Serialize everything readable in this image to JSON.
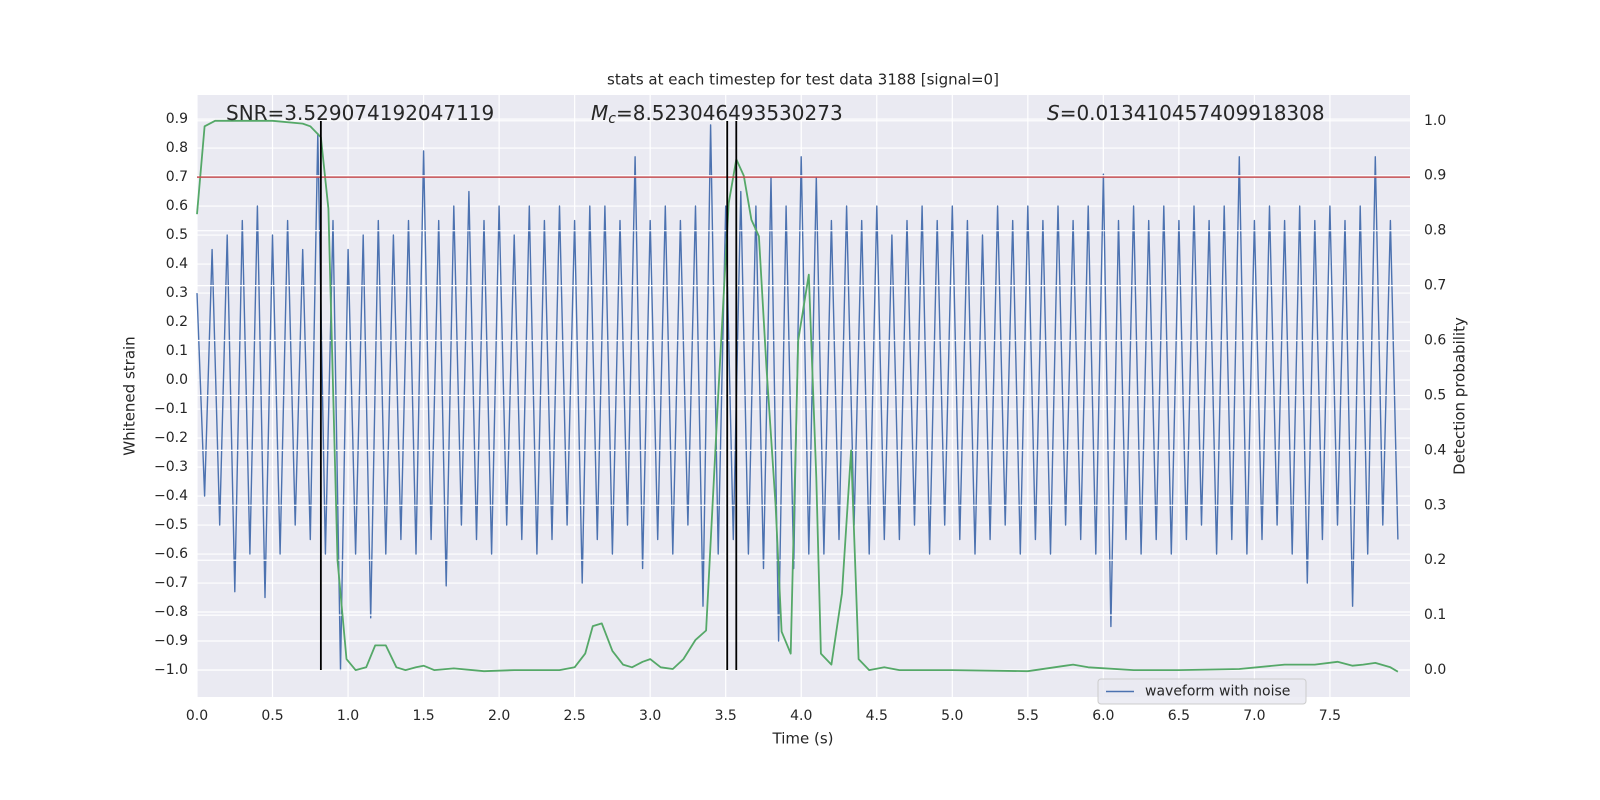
{
  "chart_data": {
    "type": "line",
    "title": "stats at each timestep for test data 3188 [signal=0]",
    "x_label": "Time (s)",
    "y_label": "Whitened strain",
    "y2_label": "Detection probability",
    "annotations": [
      {
        "text": "SNR=3.529074192047119"
      },
      {
        "symbol": "M",
        "subscript": "c",
        "text": "=8.523046493530273"
      },
      {
        "symbol": "S",
        "text": "=0.013410457409918308"
      }
    ],
    "threshold": {
      "value": 0.7,
      "color": "#c44e52"
    },
    "vlines": {
      "values": [
        0.82,
        3.51,
        3.57
      ],
      "color": "#000000"
    },
    "grid": true,
    "legend": "lower right",
    "xlim": [
      0,
      8.03
    ],
    "xticks": [
      {
        "value": 0,
        "label": "0.0"
      },
      0.5,
      {
        "value": 1,
        "label": "1.0"
      },
      1.5,
      {
        "value": 2,
        "label": "2.0"
      },
      2.5,
      {
        "value": 3,
        "label": "3.0"
      },
      3.5,
      {
        "value": 4,
        "label": "4.0"
      },
      4.5,
      {
        "value": 5,
        "label": "5.0"
      },
      5.5,
      {
        "value": 6,
        "label": "6.0"
      },
      6.5,
      {
        "value": 7,
        "label": "7.0"
      },
      7.5
    ],
    "ylim": [
      -1.093,
      0.983
    ],
    "yticks": [
      {
        "value": -1,
        "label": "−1.0"
      },
      {
        "value": -0.9,
        "label": "−0.9"
      },
      {
        "value": -0.8,
        "label": "−0.8"
      },
      {
        "value": -0.7,
        "label": "−0.7"
      },
      {
        "value": -0.6,
        "label": "−0.6"
      },
      {
        "value": -0.5,
        "label": "−0.5"
      },
      {
        "value": -0.4,
        "label": "−0.4"
      },
      {
        "value": -0.3,
        "label": "−0.3"
      },
      {
        "value": -0.2,
        "label": "−0.2"
      },
      {
        "value": -0.1,
        "label": "−0.1"
      },
      {
        "value": 0,
        "label": "0.0"
      },
      0.1,
      0.2,
      0.3,
      0.4,
      0.5,
      0.6,
      0.7,
      0.8,
      0.9
    ],
    "y2lim": [
      -0.049,
      1.047
    ],
    "y2ticks": [
      {
        "value": 0,
        "label": "0.0"
      },
      0.1,
      0.2,
      0.3,
      0.4,
      0.5,
      0.6,
      0.7,
      0.8,
      0.9,
      {
        "value": 1,
        "label": "1.0"
      }
    ],
    "series": [
      {
        "name": "waveform with noise",
        "color": "#4c72b0",
        "x": [
          0,
          0.05,
          0.1,
          0.15,
          0.2,
          0.25,
          0.3,
          0.35,
          0.4,
          0.45,
          0.5,
          0.55,
          0.6,
          0.65,
          0.7,
          0.75,
          0.8,
          0.85,
          0.9,
          0.95,
          1,
          1.05,
          1.1,
          1.15,
          1.2,
          1.25,
          1.3,
          1.35,
          1.4,
          1.45,
          1.5,
          1.55,
          1.6,
          1.65,
          1.7,
          1.75,
          1.8,
          1.85,
          1.9,
          1.95,
          2,
          2.05,
          2.1,
          2.15,
          2.2,
          2.25,
          2.3,
          2.35,
          2.4,
          2.45,
          2.5,
          2.55,
          2.6,
          2.65,
          2.7,
          2.75,
          2.8,
          2.85,
          2.9,
          2.95,
          3,
          3.05,
          3.1,
          3.15,
          3.2,
          3.25,
          3.3,
          3.35,
          3.4,
          3.45,
          3.5,
          3.55,
          3.6,
          3.65,
          3.7,
          3.75,
          3.8,
          3.85,
          3.9,
          3.95,
          4,
          4.05,
          4.1,
          4.15,
          4.2,
          4.25,
          4.3,
          4.35,
          4.4,
          4.45,
          4.5,
          4.55,
          4.6,
          4.65,
          4.7,
          4.75,
          4.8,
          4.85,
          4.9,
          4.95,
          5,
          5.05,
          5.1,
          5.15,
          5.2,
          5.25,
          5.3,
          5.35,
          5.4,
          5.45,
          5.5,
          5.55,
          5.6,
          5.65,
          5.7,
          5.75,
          5.8,
          5.85,
          5.9,
          5.95,
          6,
          6.05,
          6.1,
          6.15,
          6.2,
          6.25,
          6.3,
          6.35,
          6.4,
          6.45,
          6.5,
          6.55,
          6.6,
          6.65,
          6.7,
          6.75,
          6.8,
          6.85,
          6.9,
          6.95,
          7,
          7.05,
          7.1,
          7.15,
          7.2,
          7.25,
          7.3,
          7.35,
          7.4,
          7.45,
          7.5,
          7.55,
          7.6,
          7.65,
          7.7,
          7.75,
          7.8,
          7.85,
          7.9,
          7.95
        ],
        "values": [
          0.3,
          -0.4,
          0.45,
          -0.5,
          0.5,
          -0.73,
          0.55,
          -0.6,
          0.6,
          -0.75,
          0.5,
          -0.6,
          0.55,
          -0.5,
          0.45,
          -0.55,
          0.85,
          -0.6,
          0.55,
          -1.0,
          0.45,
          -0.6,
          0.5,
          -0.82,
          0.55,
          -0.6,
          0.5,
          -0.55,
          0.55,
          -0.6,
          0.79,
          -0.55,
          0.55,
          -0.71,
          0.6,
          -0.5,
          0.65,
          -0.55,
          0.55,
          -0.6,
          0.6,
          -0.5,
          0.5,
          -0.55,
          0.6,
          -0.6,
          0.55,
          -0.55,
          0.6,
          -0.5,
          0.55,
          -0.7,
          0.6,
          -0.55,
          0.6,
          -0.6,
          0.55,
          -0.5,
          0.77,
          -0.65,
          0.55,
          -0.55,
          0.6,
          -0.6,
          0.55,
          -0.5,
          0.6,
          -0.78,
          0.88,
          -0.6,
          0.6,
          -0.55,
          0.65,
          -0.6,
          0.6,
          -0.65,
          0.7,
          -0.9,
          0.6,
          -0.65,
          0.77,
          -0.6,
          0.7,
          -0.6,
          0.55,
          -0.55,
          0.6,
          -0.5,
          0.55,
          -0.6,
          0.6,
          -0.55,
          0.5,
          -0.55,
          0.55,
          -0.5,
          0.6,
          -0.6,
          0.55,
          -0.5,
          0.6,
          -0.55,
          0.55,
          -0.6,
          0.5,
          -0.55,
          0.6,
          -0.5,
          0.55,
          -0.6,
          0.6,
          -0.55,
          0.55,
          -0.6,
          0.6,
          -0.5,
          0.55,
          -0.55,
          0.6,
          -0.6,
          0.71,
          -0.85,
          0.55,
          -0.55,
          0.6,
          -0.6,
          0.55,
          -0.55,
          0.6,
          -0.6,
          0.55,
          -0.55,
          0.6,
          -0.5,
          0.55,
          -0.6,
          0.6,
          -0.55,
          0.77,
          -0.6,
          0.55,
          -0.55,
          0.6,
          -0.5,
          0.55,
          -0.6,
          0.6,
          -0.7,
          0.55,
          -0.55,
          0.6,
          -0.5,
          0.55,
          -0.78,
          0.6,
          -0.6,
          0.77,
          -0.5,
          0.55,
          -0.55
        ]
      },
      {
        "color": "#55a868",
        "axis": "y2",
        "x": [
          0,
          0.05,
          0.12,
          0.5,
          0.7,
          0.75,
          0.82,
          0.87,
          0.93,
          0.99,
          1.05,
          1.12,
          1.18,
          1.25,
          1.32,
          1.38,
          1.45,
          1.5,
          1.57,
          1.7,
          1.9,
          2.1,
          2.4,
          2.5,
          2.57,
          2.62,
          2.68,
          2.75,
          2.82,
          2.88,
          2.95,
          3,
          3.07,
          3.15,
          3.22,
          3.3,
          3.37,
          3.45,
          3.52,
          3.57,
          3.62,
          3.67,
          3.72,
          3.77,
          3.83,
          3.87,
          3.93,
          3.98,
          4.05,
          4.1,
          4.13,
          4.2,
          4.27,
          4.33,
          4.38,
          4.45,
          4.55,
          4.65,
          5,
          5.5,
          5.75,
          5.8,
          5.9,
          6.2,
          6.5,
          6.9,
          7.2,
          7.4,
          7.55,
          7.65,
          7.72,
          7.8,
          7.9,
          7.95
        ],
        "values": [
          0.83,
          0.99,
          1.0,
          1.0,
          0.995,
          0.99,
          0.97,
          0.84,
          0.2,
          0.02,
          0.0,
          0.005,
          0.045,
          0.045,
          0.005,
          0.0,
          0.005,
          0.008,
          0.0,
          0.003,
          -0.002,
          0.0,
          0.0,
          0.005,
          0.03,
          0.08,
          0.085,
          0.035,
          0.01,
          0.005,
          0.015,
          0.02,
          0.005,
          0.002,
          0.02,
          0.055,
          0.072,
          0.5,
          0.85,
          0.93,
          0.9,
          0.82,
          0.79,
          0.55,
          0.3,
          0.07,
          0.03,
          0.6,
          0.72,
          0.35,
          0.03,
          0.01,
          0.14,
          0.4,
          0.02,
          0.0,
          0.005,
          0.0,
          0.0,
          -0.002,
          0.008,
          0.01,
          0.005,
          0.0,
          0.0,
          0.002,
          0.01,
          0.01,
          0.015,
          0.008,
          0.01,
          0.013,
          0.005,
          -0.003
        ]
      }
    ]
  }
}
